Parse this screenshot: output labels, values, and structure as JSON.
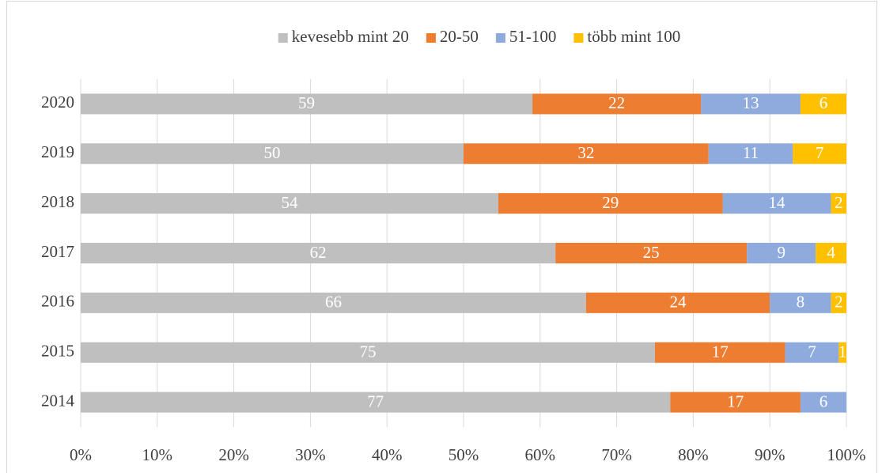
{
  "chart_data": {
    "type": "bar",
    "orientation": "horizontal",
    "stacked": "percent",
    "categories": [
      "2014",
      "2015",
      "2016",
      "2017",
      "2018",
      "2019",
      "2020"
    ],
    "series": [
      {
        "name": "kevesebb mint 20",
        "color": "#bfbfbf",
        "values": [
          77,
          75,
          66,
          62,
          54,
          50,
          59
        ]
      },
      {
        "name": "20-50",
        "color": "#ed7d31",
        "values": [
          17,
          17,
          24,
          25,
          29,
          32,
          22
        ]
      },
      {
        "name": "51-100",
        "color": "#8faadc",
        "values": [
          6,
          7,
          8,
          9,
          14,
          11,
          13
        ]
      },
      {
        "name": "több mint 100",
        "color": "#ffc000",
        "values": [
          null,
          1,
          2,
          4,
          2,
          7,
          6
        ]
      }
    ],
    "xlim": [
      0,
      100
    ],
    "xticks": [
      {
        "value": 0,
        "label": "0%"
      },
      {
        "value": 10,
        "label": "10%"
      },
      {
        "value": 20,
        "label": "20%"
      },
      {
        "value": 30,
        "label": "30%"
      },
      {
        "value": 40,
        "label": "40%"
      },
      {
        "value": 50,
        "label": "50%"
      },
      {
        "value": 60,
        "label": "60%"
      },
      {
        "value": 70,
        "label": "70%"
      },
      {
        "value": 80,
        "label": "80%"
      },
      {
        "value": 90,
        "label": "90%"
      },
      {
        "value": 100,
        "label": "100%"
      }
    ],
    "grid": true,
    "legend": "top"
  }
}
